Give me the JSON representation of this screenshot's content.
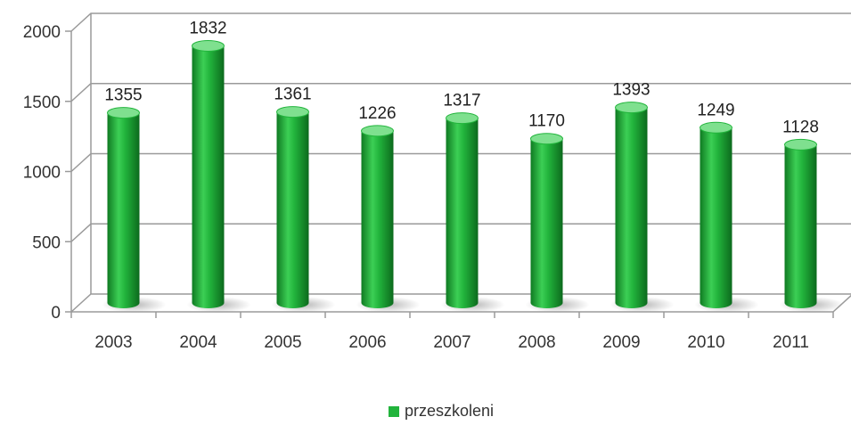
{
  "chart_data": {
    "type": "bar",
    "categories": [
      "2003",
      "2004",
      "2005",
      "2006",
      "2007",
      "2008",
      "2009",
      "2010",
      "2011"
    ],
    "series": [
      {
        "name": "przeszkoleni",
        "values": [
          1355,
          1832,
          1361,
          1226,
          1317,
          1170,
          1393,
          1249,
          1128
        ]
      }
    ],
    "data_labels": [
      "1355",
      "1832",
      "1361",
      "1226",
      "1317",
      "1170",
      "1393",
      "1249",
      "1128"
    ],
    "ylim": [
      0,
      2000
    ],
    "yticks": [
      0,
      500,
      1000,
      1500,
      2000
    ],
    "ytick_labels": [
      "0",
      "500",
      "1000",
      "1500",
      "2000"
    ],
    "grid": true,
    "legend_position": "bottom",
    "bar_shape": "cylinder",
    "colors": {
      "bar": "#22b43c",
      "bar_dark": "#0f7a22",
      "bar_light": "#7fe08f",
      "grid": "#9a9a9a"
    }
  }
}
